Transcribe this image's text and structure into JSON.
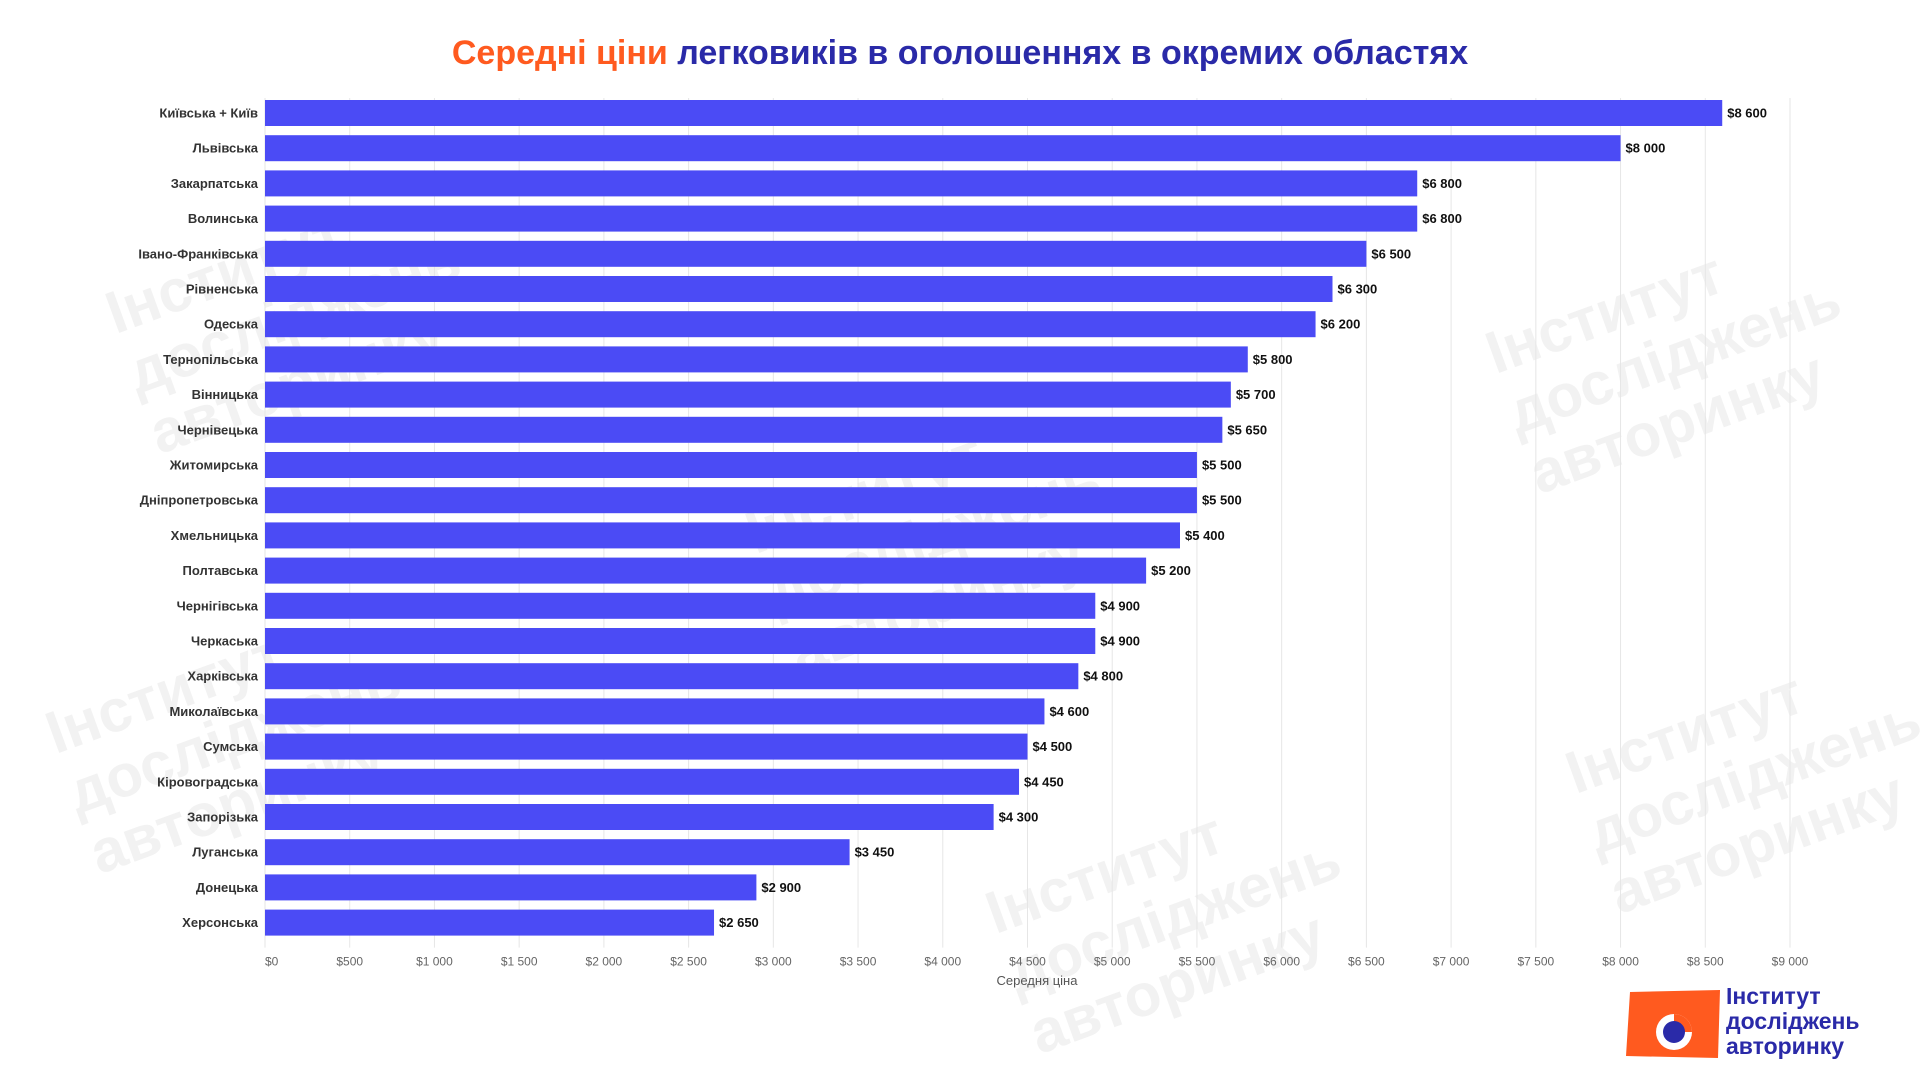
{
  "title": {
    "accent": "Середні ціни",
    "main": "легковиків в оголошеннях в окремих областях"
  },
  "colors": {
    "bar": "#4b4bf5",
    "accent": "#ff5a1f",
    "title": "#2a2aa8",
    "grid": "#e6e6e6",
    "text": "#333333"
  },
  "chart_data": {
    "type": "bar",
    "orientation": "horizontal",
    "categories": [
      "Київська + Київ",
      "Львівська",
      "Закарпатська",
      "Волинська",
      "Івано-Франківська",
      "Рівненська",
      "Одеська",
      "Тернопільська",
      "Вінницька",
      "Чернівецька",
      "Житомирська",
      "Дніпропетровська",
      "Хмельницька",
      "Полтавська",
      "Чернігівська",
      "Черкаська",
      "Харківська",
      "Миколаївська",
      "Сумська",
      "Кіровоградська",
      "Запорізька",
      "Луганська",
      "Донецька",
      "Херсонська"
    ],
    "values": [
      8600,
      8000,
      6800,
      6800,
      6500,
      6300,
      6200,
      5800,
      5700,
      5650,
      5500,
      5500,
      5400,
      5200,
      4900,
      4900,
      4800,
      4600,
      4500,
      4450,
      4300,
      3450,
      2900,
      2650
    ],
    "value_labels": [
      "$8 600",
      "$8 000",
      "$6 800",
      "$6 800",
      "$6 500",
      "$6 300",
      "$6 200",
      "$5 800",
      "$5 700",
      "$5 650",
      "$5 500",
      "$5 500",
      "$5 400",
      "$5 200",
      "$4 900",
      "$4 900",
      "$4 800",
      "$4 600",
      "$4 500",
      "$4 450",
      "$4 300",
      "$3 450",
      "$2 900",
      "$2 650"
    ],
    "xticks": [
      0,
      500,
      1000,
      1500,
      2000,
      2500,
      3000,
      3500,
      4000,
      4500,
      5000,
      5500,
      6000,
      6500,
      7000,
      7500,
      8000,
      8500,
      9000
    ],
    "xtick_labels": [
      "$0",
      "$500",
      "$1 000",
      "$1 500",
      "$2 000",
      "$2 500",
      "$3 000",
      "$3 500",
      "$4 000",
      "$4 500",
      "$5 000",
      "$5 500",
      "$6 000",
      "$6 500",
      "$7 000",
      "$7 500",
      "$8 000",
      "$8 500",
      "$9 000"
    ],
    "xlim": [
      0,
      9000
    ],
    "xlabel": "Середня ціна",
    "ylabel": "",
    "grid": true
  },
  "logo": {
    "lines": [
      "Інститут",
      "досліджень",
      "авторинку"
    ]
  },
  "watermark": {
    "lines": [
      "Інститут",
      "досліджень",
      "авторинку"
    ]
  }
}
